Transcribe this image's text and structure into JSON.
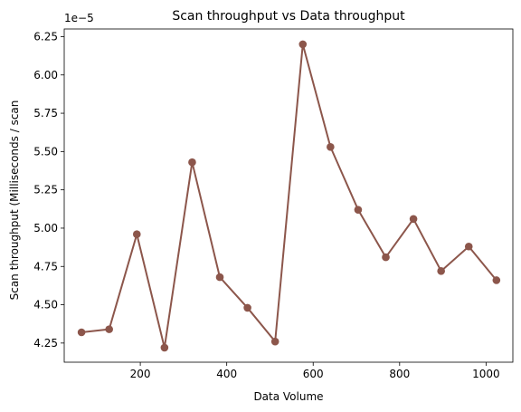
{
  "chart_data": {
    "type": "line",
    "title": "Scan throughput vs Data throughput",
    "xlabel": "Data Volume",
    "ylabel": "Scan throughput (Milliseconds / scan",
    "y_offset_label": "1e−5",
    "y_scale": 1e-05,
    "xlim": [
      24,
      1062
    ],
    "ylim": [
      4.125,
      6.3
    ],
    "grid": false,
    "x_ticks": [
      200,
      400,
      600,
      800,
      1000
    ],
    "x_tick_labels": [
      "200",
      "400",
      "600",
      "800",
      "1000"
    ],
    "y_ticks": [
      4.25,
      4.5,
      4.75,
      5.0,
      5.25,
      5.5,
      5.75,
      6.0,
      6.25
    ],
    "y_tick_labels": [
      "4.25",
      "4.50",
      "4.75",
      "5.00",
      "5.25",
      "5.50",
      "5.75",
      "6.00",
      "6.25"
    ],
    "series": [
      {
        "name": "Scan throughput",
        "color": "#8c564b",
        "x": [
          64,
          128,
          192,
          256,
          320,
          384,
          448,
          512,
          576,
          640,
          704,
          768,
          832,
          896,
          960,
          1024
        ],
        "values": [
          4.32,
          4.34,
          4.96,
          4.22,
          5.43,
          4.68,
          4.48,
          4.26,
          6.2,
          5.53,
          5.12,
          4.81,
          5.06,
          4.72,
          4.88,
          4.66
        ]
      }
    ]
  }
}
